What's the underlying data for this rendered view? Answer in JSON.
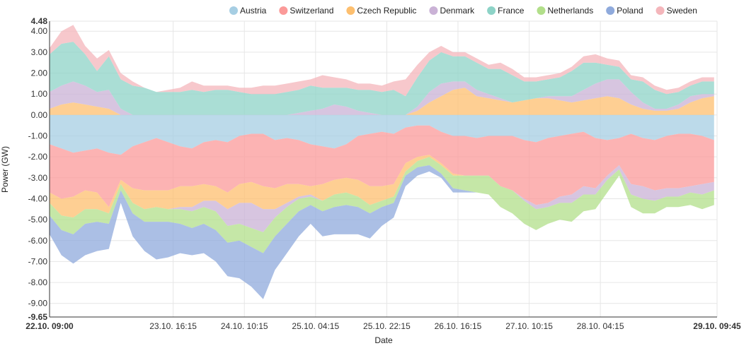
{
  "chart_data": {
    "type": "area",
    "stacked": true,
    "diverging": true,
    "title": "",
    "xlabel": "Date",
    "ylabel": "Power (GW)",
    "ylim": [
      -9.65,
      4.48
    ],
    "y_ticks": [
      "4.48",
      "4.00",
      "3.00",
      "2.00",
      "1.00",
      "0.00",
      "-1.00",
      "-2.00",
      "-3.00",
      "-4.00",
      "-5.00",
      "-6.00",
      "-7.00",
      "-8.00",
      "-9.00",
      "-9.65"
    ],
    "y_tick_values": [
      4.48,
      4,
      3,
      2,
      1,
      0,
      -1,
      -2,
      -3,
      -4,
      -5,
      -6,
      -7,
      -8,
      -9,
      -9.65
    ],
    "x_ticks": [
      "22.10. 09:00",
      "23.10. 16:15",
      "24.10. 10:15",
      "25.10. 04:15",
      "25.10. 22:15",
      "26.10. 16:15",
      "27.10. 10:15",
      "28.10. 04:15",
      "29.10. 09:45"
    ],
    "x_tick_hours": [
      0,
      31.25,
      49.25,
      67.25,
      85.25,
      103.25,
      121.25,
      139.25,
      168.75
    ],
    "xlim_hours": [
      0,
      168.75
    ],
    "legend_position": "top",
    "grid": true,
    "x_hours": [
      0,
      3,
      6,
      9,
      12,
      15,
      18,
      21,
      24,
      27,
      30,
      33,
      36,
      39,
      42,
      45,
      48,
      51,
      54,
      57,
      60,
      63,
      66,
      69,
      72,
      75,
      78,
      81,
      84,
      87,
      90,
      93,
      96,
      99,
      102,
      105,
      108,
      111,
      114,
      117,
      120,
      123,
      126,
      129,
      132,
      135,
      138,
      141,
      144,
      147,
      150,
      153,
      156,
      159,
      162,
      165,
      168
    ],
    "series": [
      {
        "name": "Austria",
        "color": "#a6cee3",
        "pos": [
          0.0,
          0.0,
          0.0,
          0.0,
          0.0,
          0.0,
          0.0,
          0.0,
          0.0,
          0.0,
          0.0,
          0.0,
          0.0,
          0.0,
          0.0,
          0.0,
          0.0,
          0.0,
          0.0,
          0.0,
          0.0,
          0.0,
          0.0,
          0.0,
          0.0,
          0.0,
          0.0,
          0.0,
          0.0,
          0.0,
          0.0,
          0.0,
          0.0,
          0.0,
          0.0,
          0.0,
          0.0,
          0.0,
          0.0,
          0.0,
          0.0,
          0.0,
          0.0,
          0.0,
          0.0,
          0.0,
          0.0,
          0.0,
          0.0,
          0.0,
          0.0,
          0.0,
          0.0,
          0.0,
          0.0,
          0.0,
          0.0
        ],
        "neg": [
          -1.4,
          -1.6,
          -1.8,
          -1.7,
          -1.6,
          -1.8,
          -1.9,
          -1.5,
          -1.3,
          -1.1,
          -1.3,
          -1.5,
          -1.6,
          -1.3,
          -1.2,
          -1.3,
          -1.0,
          -0.9,
          -0.9,
          -1.2,
          -1.1,
          -1.2,
          -1.4,
          -1.5,
          -1.6,
          -1.4,
          -1.0,
          -0.9,
          -0.8,
          -0.9,
          -0.6,
          -0.5,
          -0.5,
          -0.8,
          -1.0,
          -1.0,
          -1.1,
          -1.0,
          -1.0,
          -1.0,
          -1.2,
          -1.3,
          -1.1,
          -1.0,
          -0.9,
          -0.8,
          -1.1,
          -1.2,
          -1.1,
          -0.9,
          -1.1,
          -1.2,
          -1.0,
          -0.9,
          -0.9,
          -1.0,
          -1.2
        ]
      },
      {
        "name": "Switzerland",
        "color": "#fb9a99",
        "pos": [
          0.0,
          0.0,
          0.0,
          0.0,
          0.0,
          0.0,
          0.0,
          0.0,
          0.0,
          0.0,
          0.0,
          0.0,
          0.0,
          0.0,
          0.0,
          0.0,
          0.0,
          0.0,
          0.0,
          0.0,
          0.0,
          0.0,
          0.0,
          0.0,
          0.0,
          0.0,
          0.0,
          0.0,
          0.0,
          0.0,
          0.0,
          0.0,
          0.0,
          0.0,
          0.0,
          0.0,
          0.0,
          0.0,
          0.0,
          0.0,
          0.0,
          0.0,
          0.0,
          0.0,
          0.0,
          0.0,
          0.0,
          0.0,
          0.0,
          0.0,
          0.0,
          0.0,
          0.0,
          0.0,
          0.0,
          0.0,
          0.0
        ],
        "neg": [
          -2.3,
          -2.4,
          -2.1,
          -1.9,
          -2.1,
          -2.6,
          -1.2,
          -2.0,
          -2.3,
          -2.5,
          -2.3,
          -1.9,
          -1.8,
          -2.0,
          -2.2,
          -2.4,
          -2.3,
          -2.3,
          -2.5,
          -2.3,
          -2.2,
          -2.1,
          -2.0,
          -1.8,
          -1.5,
          -1.6,
          -2.1,
          -2.5,
          -2.6,
          -2.4,
          -1.7,
          -1.5,
          -1.4,
          -1.5,
          -1.8,
          -1.9,
          -1.8,
          -1.9,
          -2.4,
          -2.6,
          -2.8,
          -3.0,
          -3.1,
          -2.9,
          -2.9,
          -2.6,
          -2.4,
          -1.7,
          -1.3,
          -2.4,
          -2.3,
          -2.4,
          -2.5,
          -2.6,
          -2.5,
          -2.3,
          -2.0
        ]
      },
      {
        "name": "Czech Republic",
        "color": "#fdbf6f",
        "pos": [
          0.3,
          0.5,
          0.6,
          0.5,
          0.4,
          0.3,
          0.0,
          0.0,
          0.0,
          0.0,
          0.0,
          0.0,
          0.0,
          0.0,
          0.0,
          0.0,
          0.0,
          0.0,
          0.0,
          0.0,
          0.0,
          0.0,
          0.0,
          0.0,
          0.0,
          0.0,
          0.0,
          0.0,
          0.0,
          0.0,
          0.0,
          0.2,
          0.6,
          0.9,
          1.2,
          1.3,
          0.9,
          0.8,
          0.7,
          0.6,
          0.7,
          0.8,
          0.8,
          0.7,
          0.6,
          0.7,
          0.8,
          0.9,
          0.8,
          0.5,
          0.3,
          0.2,
          0.2,
          0.3,
          0.6,
          0.8,
          0.9
        ],
        "neg": [
          -0.5,
          -0.8,
          -1.0,
          -0.9,
          -0.8,
          -0.3,
          -0.2,
          -0.7,
          -0.9,
          -0.8,
          -0.9,
          -1.0,
          -1.0,
          -0.8,
          -0.7,
          -0.8,
          -0.9,
          -1.0,
          -1.1,
          -1.0,
          -0.9,
          -0.6,
          -0.4,
          -0.8,
          -0.7,
          -0.7,
          -0.8,
          -0.9,
          -0.7,
          -0.6,
          -0.4,
          -0.2,
          -0.1,
          -0.1,
          -0.1,
          0.0,
          0.0,
          0.0,
          0.0,
          0.0,
          0.0,
          0.0,
          0.0,
          0.0,
          0.0,
          0.0,
          0.0,
          0.0,
          0.0,
          0.0,
          0.0,
          0.0,
          0.0,
          0.0,
          0.0,
          0.0,
          0.0
        ]
      },
      {
        "name": "Denmark",
        "color": "#cab2d6",
        "pos": [
          0.8,
          0.9,
          1.0,
          0.9,
          0.7,
          0.9,
          0.3,
          0.0,
          0.0,
          0.0,
          0.0,
          0.0,
          0.0,
          0.0,
          0.0,
          0.0,
          0.0,
          0.0,
          0.0,
          0.0,
          0.0,
          0.1,
          0.2,
          0.3,
          0.5,
          0.4,
          0.2,
          0.1,
          0.0,
          0.0,
          0.0,
          0.2,
          0.5,
          0.6,
          0.4,
          0.3,
          0.3,
          0.2,
          0.1,
          0.0,
          0.0,
          0.0,
          0.1,
          0.2,
          0.3,
          0.5,
          0.7,
          0.8,
          0.9,
          0.6,
          0.3,
          0.1,
          0.1,
          0.2,
          0.3,
          0.2,
          0.1
        ],
        "neg": [
          0.0,
          0.0,
          0.0,
          0.0,
          0.0,
          0.0,
          0.0,
          0.0,
          0.0,
          0.0,
          0.0,
          -0.1,
          -0.2,
          -0.3,
          -0.5,
          -0.8,
          -1.0,
          -1.2,
          -1.1,
          -0.4,
          -0.2,
          -0.1,
          -0.1,
          0.0,
          0.0,
          0.0,
          0.0,
          0.0,
          0.0,
          0.0,
          0.0,
          0.0,
          0.0,
          0.0,
          0.0,
          0.0,
          0.0,
          0.0,
          0.0,
          0.0,
          -0.1,
          -0.2,
          -0.2,
          -0.3,
          -0.4,
          -0.4,
          -0.3,
          -0.2,
          -0.2,
          -0.5,
          -0.6,
          -0.5,
          -0.4,
          -0.4,
          -0.3,
          -0.5,
          -0.4
        ]
      },
      {
        "name": "France",
        "color": "#8dd3c7",
        "pos": [
          1.8,
          2.0,
          1.9,
          1.5,
          1.0,
          1.6,
          1.4,
          1.4,
          1.3,
          1.1,
          1.1,
          1.1,
          1.2,
          1.1,
          1.2,
          1.2,
          1.1,
          1.0,
          1.0,
          1.0,
          1.1,
          1.1,
          1.2,
          1.0,
          0.8,
          0.9,
          1.0,
          1.1,
          1.1,
          1.2,
          0.9,
          1.4,
          1.5,
          1.5,
          1.2,
          1.2,
          1.3,
          1.2,
          1.4,
          1.3,
          0.9,
          0.8,
          0.8,
          0.9,
          1.2,
          1.3,
          1.0,
          0.7,
          0.6,
          0.6,
          1.0,
          0.9,
          0.7,
          0.6,
          0.5,
          0.6,
          0.6
        ],
        "neg": [
          0.0,
          0.0,
          0.0,
          0.0,
          0.0,
          0.0,
          0.0,
          0.0,
          0.0,
          0.0,
          0.0,
          0.0,
          0.0,
          0.0,
          0.0,
          0.0,
          0.0,
          0.0,
          0.0,
          0.0,
          0.0,
          0.0,
          0.0,
          0.0,
          0.0,
          0.0,
          0.0,
          0.0,
          0.0,
          0.0,
          0.0,
          0.0,
          0.0,
          0.0,
          0.0,
          0.0,
          0.0,
          0.0,
          0.0,
          0.0,
          0.0,
          0.0,
          0.0,
          0.0,
          0.0,
          0.0,
          0.0,
          0.0,
          0.0,
          0.0,
          0.0,
          0.0,
          0.0,
          0.0,
          0.0,
          0.0,
          0.0
        ]
      },
      {
        "name": "Netherlands",
        "color": "#b2df8a",
        "pos": [
          0.0,
          0.0,
          0.0,
          0.0,
          0.0,
          0.0,
          0.0,
          0.0,
          0.0,
          0.0,
          0.0,
          0.0,
          0.0,
          0.0,
          0.0,
          0.0,
          0.0,
          0.0,
          0.0,
          0.0,
          0.0,
          0.0,
          0.0,
          0.0,
          0.0,
          0.0,
          0.0,
          0.0,
          0.0,
          0.0,
          0.0,
          0.0,
          0.0,
          0.0,
          0.0,
          0.0,
          0.0,
          0.0,
          0.0,
          0.0,
          0.0,
          0.0,
          0.0,
          0.0,
          0.0,
          0.0,
          0.0,
          0.0,
          0.0,
          0.0,
          0.0,
          0.0,
          0.0,
          0.0,
          0.0,
          0.0,
          0.0
        ],
        "neg": [
          -0.6,
          -0.7,
          -0.8,
          -0.7,
          -0.6,
          -0.5,
          -0.3,
          -0.5,
          -0.6,
          -0.7,
          -0.6,
          -0.7,
          -0.8,
          -0.8,
          -0.9,
          -0.8,
          -0.8,
          -0.9,
          -1.0,
          -0.9,
          -0.8,
          -0.6,
          -0.4,
          -0.5,
          -0.6,
          -0.6,
          -0.5,
          -0.4,
          -0.3,
          -0.3,
          -0.2,
          -0.3,
          -0.4,
          -0.4,
          -0.6,
          -0.7,
          -0.8,
          -0.9,
          -1.0,
          -1.1,
          -1.1,
          -1.0,
          -0.8,
          -0.8,
          -0.9,
          -0.8,
          -0.7,
          -0.6,
          -0.3,
          -0.6,
          -0.7,
          -0.6,
          -0.5,
          -0.5,
          -0.6,
          -0.7,
          -0.7
        ]
      },
      {
        "name": "Poland",
        "color": "#8faadc",
        "pos": [
          0.0,
          0.0,
          0.0,
          0.0,
          0.0,
          0.0,
          0.0,
          0.0,
          0.0,
          0.0,
          0.0,
          0.0,
          0.0,
          0.0,
          0.0,
          0.0,
          0.0,
          0.0,
          0.0,
          0.0,
          0.0,
          0.0,
          0.0,
          0.0,
          0.0,
          0.0,
          0.0,
          0.0,
          0.0,
          0.0,
          0.0,
          0.0,
          0.0,
          0.0,
          0.0,
          0.0,
          0.0,
          0.0,
          0.0,
          0.0,
          0.0,
          0.0,
          0.0,
          0.0,
          0.0,
          0.0,
          0.0,
          0.0,
          0.0,
          0.0,
          0.0,
          0.0,
          0.0,
          0.0,
          0.0,
          0.0,
          0.0
        ],
        "neg": [
          -0.9,
          -1.2,
          -1.4,
          -1.5,
          -1.4,
          -1.2,
          -0.6,
          -1.1,
          -1.4,
          -1.8,
          -1.7,
          -1.4,
          -1.3,
          -1.4,
          -1.5,
          -1.6,
          -1.8,
          -1.9,
          -2.2,
          -1.6,
          -1.4,
          -1.2,
          -0.9,
          -1.2,
          -1.3,
          -1.4,
          -1.3,
          -1.2,
          -0.9,
          -0.7,
          -0.5,
          -0.4,
          -0.3,
          -0.2,
          -0.2,
          -0.1,
          0.0,
          0.0,
          0.0,
          0.0,
          0.0,
          0.0,
          0.0,
          0.0,
          0.0,
          0.0,
          0.0,
          0.0,
          0.0,
          0.0,
          0.0,
          0.0,
          0.0,
          0.0,
          0.0,
          0.0,
          0.0
        ]
      },
      {
        "name": "Sweden",
        "color": "#f4b6bb",
        "pos": [
          0.3,
          0.6,
          0.8,
          0.4,
          0.6,
          0.3,
          0.3,
          0.2,
          0.0,
          0.0,
          0.1,
          0.2,
          0.4,
          0.3,
          0.2,
          0.2,
          0.2,
          0.3,
          0.4,
          0.4,
          0.4,
          0.4,
          0.3,
          0.6,
          0.5,
          0.4,
          0.3,
          0.3,
          0.3,
          0.4,
          0.8,
          0.6,
          0.4,
          0.3,
          0.2,
          0.2,
          0.2,
          0.2,
          0.3,
          0.3,
          0.2,
          0.2,
          0.2,
          0.2,
          0.2,
          0.3,
          0.4,
          0.3,
          0.3,
          0.2,
          0.2,
          0.2,
          0.2,
          0.2,
          0.2,
          0.2,
          0.2
        ],
        "neg": [
          0.0,
          0.0,
          0.0,
          0.0,
          0.0,
          0.0,
          0.0,
          0.0,
          0.0,
          0.0,
          0.0,
          0.0,
          0.0,
          0.0,
          0.0,
          0.0,
          0.0,
          0.0,
          0.0,
          0.0,
          0.0,
          0.0,
          0.0,
          0.0,
          0.0,
          0.0,
          0.0,
          0.0,
          0.0,
          0.0,
          0.0,
          0.0,
          0.0,
          0.0,
          0.0,
          0.0,
          0.0,
          0.0,
          0.0,
          0.0,
          0.0,
          0.0,
          0.0,
          0.0,
          0.0,
          0.0,
          0.0,
          0.0,
          0.0,
          0.0,
          0.0,
          0.0,
          0.0,
          0.0,
          0.0,
          0.0,
          0.0
        ]
      }
    ]
  }
}
